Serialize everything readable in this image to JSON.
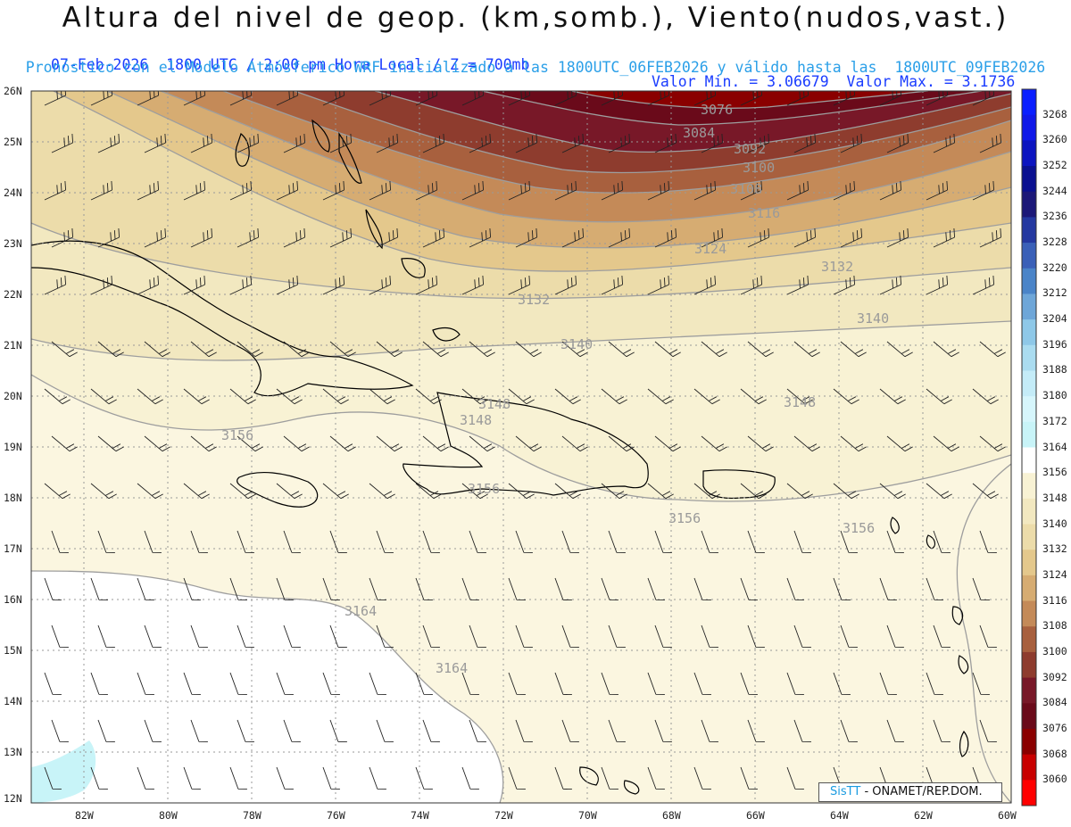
{
  "header": {
    "title": "Altura del nivel de geop. (km,somb.), Viento(nudos,vast.)",
    "line1_left": "07-Feb-2026  1800 UTC / 2:00 pm Hora Local / Z = 700mb",
    "line1_right": "Valor Min. = 3.06679  Valor Max. = 3.1736",
    "line2": "Pronóstico con el Modelo Atmósferico WRF inicializado a las 1800UTC_06FEB2026 y válido hasta las  1800UTC_09FEB2026"
  },
  "map": {
    "lat_labels": [
      "26N",
      "25N",
      "24N",
      "23N",
      "22N",
      "21N",
      "20N",
      "19N",
      "18N",
      "17N",
      "16N",
      "15N",
      "14N",
      "13N",
      "12N"
    ],
    "lon_labels": [
      "82W",
      "80W",
      "78W",
      "76W",
      "74W",
      "72W",
      "70W",
      "68W",
      "66W",
      "64W",
      "62W",
      "60W"
    ],
    "contour_labels": [
      "3076",
      "3084",
      "3092",
      "3100",
      "3108",
      "3116",
      "3124",
      "3132",
      "3132",
      "3140",
      "3140",
      "3148",
      "3148",
      "3148",
      "3156",
      "3156",
      "3156",
      "3156",
      "3164",
      "3164"
    ]
  },
  "colorbar": {
    "levels": [
      "3268",
      "3260",
      "3252",
      "3244",
      "3236",
      "3228",
      "3220",
      "3212",
      "3204",
      "3196",
      "3188",
      "3180",
      "3172",
      "3164",
      "3156",
      "3148",
      "3140",
      "3132",
      "3124",
      "3116",
      "3108",
      "3100",
      "3092",
      "3084",
      "3076",
      "3068",
      "3060"
    ],
    "colors": [
      "#0a1eff",
      "#1018e8",
      "#0c14c0",
      "#0a1090",
      "#1c1878",
      "#2438a0",
      "#3a60b8",
      "#4a84c8",
      "#6ea6d8",
      "#8ec8e8",
      "#aadcf0",
      "#c4ecf8",
      "#d6f6fc",
      "#c8f4f8",
      "#ffffff",
      "#f8f2d4",
      "#f2e8c0",
      "#ecdcaa",
      "#e4c88c",
      "#d6ac72",
      "#c48a58",
      "#a8603e",
      "#8e3c2e",
      "#781828",
      "#6a0a1a",
      "#8a0000",
      "#c80000",
      "#ff0000"
    ]
  },
  "logo": {
    "sis": "SisTT",
    "org": "- ONAMET/REP.DOM."
  }
}
